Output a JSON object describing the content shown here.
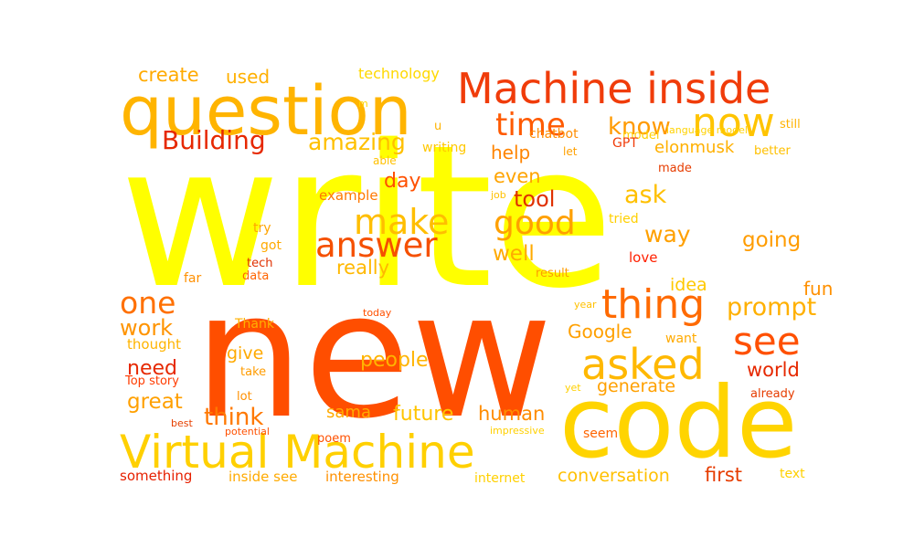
{
  "words": [
    {
      "text": "write",
      "color": "#ffff00"
    },
    {
      "text": "new",
      "color": "#ff4e00"
    },
    {
      "text": "code",
      "color": "#ffd400"
    },
    {
      "text": "question",
      "color": "#ffb400"
    },
    {
      "text": "Machine inside",
      "color": "#f03c0a"
    },
    {
      "text": "Virtual Machine",
      "color": "#ffd000"
    },
    {
      "text": "now",
      "color": "#ffc400"
    },
    {
      "text": "thing",
      "color": "#ff6a00"
    },
    {
      "text": "asked",
      "color": "#ffb800"
    },
    {
      "text": "see",
      "color": "#ff5000"
    },
    {
      "text": "answer",
      "color": "#f55000"
    },
    {
      "text": "make",
      "color": "#ffbe00"
    },
    {
      "text": "good",
      "color": "#ffa000"
    },
    {
      "text": "time",
      "color": "#ff5a00"
    },
    {
      "text": "one",
      "color": "#ff7000"
    },
    {
      "text": "Building",
      "color": "#e62800"
    },
    {
      "text": "know",
      "color": "#ff9a00"
    },
    {
      "text": "amazing",
      "color": "#ffc000"
    },
    {
      "text": "create",
      "color": "#ffaa00"
    },
    {
      "text": "used",
      "color": "#ffb000"
    },
    {
      "text": "technology",
      "color": "#ffd800"
    },
    {
      "text": "chatbot",
      "color": "#ff8c00"
    },
    {
      "text": "model",
      "color": "#ffd000"
    },
    {
      "text": "language model",
      "color": "#ffd200"
    },
    {
      "text": "still",
      "color": "#ffb200"
    },
    {
      "text": "elonmusk",
      "color": "#ffb000"
    },
    {
      "text": "better",
      "color": "#ffc000"
    },
    {
      "text": "GPT",
      "color": "#f03c0a"
    },
    {
      "text": "let",
      "color": "#ffa000"
    },
    {
      "text": "writing",
      "color": "#ffc800"
    },
    {
      "text": "u",
      "color": "#ffb400"
    },
    {
      "text": "m",
      "color": "#ffd400"
    },
    {
      "text": "help",
      "color": "#ff8400"
    },
    {
      "text": "even",
      "color": "#ffa400"
    },
    {
      "text": "able",
      "color": "#ffc000"
    },
    {
      "text": "made",
      "color": "#e63c00"
    },
    {
      "text": "day",
      "color": "#ff5000"
    },
    {
      "text": "example",
      "color": "#ff7800"
    },
    {
      "text": "job",
      "color": "#ffc000"
    },
    {
      "text": "tool",
      "color": "#e03000"
    },
    {
      "text": "ask",
      "color": "#ffc000"
    },
    {
      "text": "tried",
      "color": "#ffd000"
    },
    {
      "text": "way",
      "color": "#ffa000"
    },
    {
      "text": "going",
      "color": "#ff9c00"
    },
    {
      "text": "try",
      "color": "#ffa400"
    },
    {
      "text": "got",
      "color": "#ffaa00"
    },
    {
      "text": "really",
      "color": "#ffb800"
    },
    {
      "text": "well",
      "color": "#ffaa00"
    },
    {
      "text": "tech",
      "color": "#e03000"
    },
    {
      "text": "data",
      "color": "#ff6400"
    },
    {
      "text": "far",
      "color": "#ff9000"
    },
    {
      "text": "love",
      "color": "#ff2000"
    },
    {
      "text": "result",
      "color": "#ff9c00"
    },
    {
      "text": "idea",
      "color": "#ffc800"
    },
    {
      "text": "prompt",
      "color": "#ffb000"
    },
    {
      "text": "work",
      "color": "#ff9400"
    },
    {
      "text": "year",
      "color": "#ffc000"
    },
    {
      "text": "today",
      "color": "#ff5000"
    },
    {
      "text": "Thank",
      "color": "#ffb000"
    },
    {
      "text": "thought",
      "color": "#ffb400"
    },
    {
      "text": "Google",
      "color": "#ffa000"
    },
    {
      "text": "want",
      "color": "#ffaa00"
    },
    {
      "text": "need",
      "color": "#e62800"
    },
    {
      "text": "give",
      "color": "#ffaa00"
    },
    {
      "text": "people",
      "color": "#ffb400"
    },
    {
      "text": "world",
      "color": "#e62800"
    },
    {
      "text": "Top story",
      "color": "#ff3c00"
    },
    {
      "text": "take",
      "color": "#ff9c00"
    },
    {
      "text": "generate",
      "color": "#ffa000"
    },
    {
      "text": "great",
      "color": "#ffa000"
    },
    {
      "text": "lot",
      "color": "#ff9000"
    },
    {
      "text": "think",
      "color": "#ff7800"
    },
    {
      "text": "yet",
      "color": "#ffd000"
    },
    {
      "text": "already",
      "color": "#e63c00"
    },
    {
      "text": "best",
      "color": "#e64000"
    },
    {
      "text": "potential",
      "color": "#ff5000"
    },
    {
      "text": "sama",
      "color": "#ffaa00"
    },
    {
      "text": "future",
      "color": "#ffc400"
    },
    {
      "text": "human",
      "color": "#ff8c00"
    },
    {
      "text": "impressive",
      "color": "#ffd000"
    },
    {
      "text": "poem",
      "color": "#ff5000"
    },
    {
      "text": "seem",
      "color": "#ff6400"
    },
    {
      "text": "something",
      "color": "#e62000"
    },
    {
      "text": "inside see",
      "color": "#ffaa00"
    },
    {
      "text": "interesting",
      "color": "#ff9000"
    },
    {
      "text": "internet",
      "color": "#ffd000"
    },
    {
      "text": "conversation",
      "color": "#ffc000"
    },
    {
      "text": "first",
      "color": "#e63c00"
    },
    {
      "text": "text",
      "color": "#ffd000"
    },
    {
      "text": "fun",
      "color": "#ff9000"
    }
  ]
}
